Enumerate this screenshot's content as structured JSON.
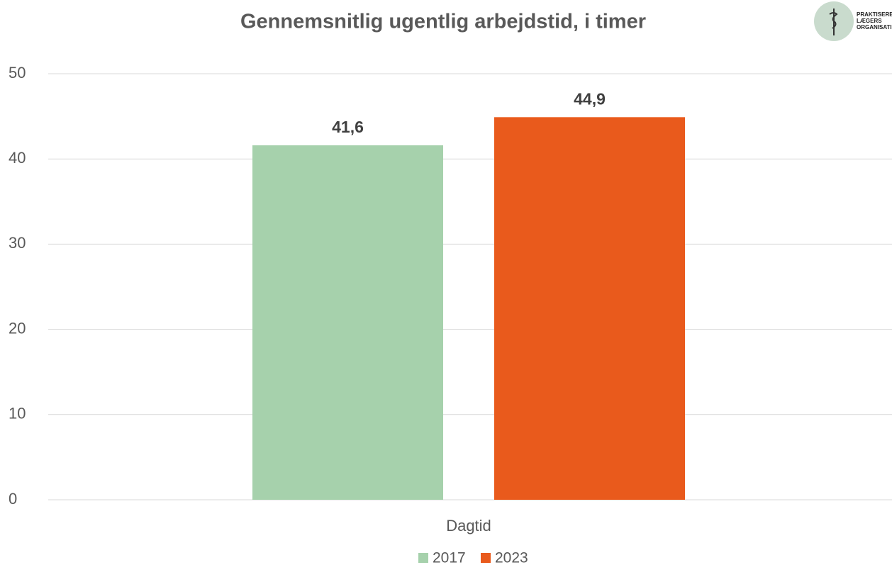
{
  "chart_data": {
    "type": "bar",
    "title": "Gennemsnitlig ugentlig arbejdstid, i timer",
    "logo": [
      "PRAKTISERENDE",
      "LÆGERS",
      "ORGANISATION"
    ],
    "categories": [
      "Dagtid"
    ],
    "series": [
      {
        "name": "2017",
        "color": "#a6d1ac",
        "values": [
          41.6
        ],
        "value_labels": [
          "41,6"
        ]
      },
      {
        "name": "2023",
        "color": "#e95a1c",
        "values": [
          44.9
        ],
        "value_labels": [
          "44,9"
        ]
      }
    ],
    "ylim": [
      0,
      50
    ],
    "yticks": [
      0,
      10,
      20,
      30,
      40,
      50
    ],
    "grid": true
  }
}
